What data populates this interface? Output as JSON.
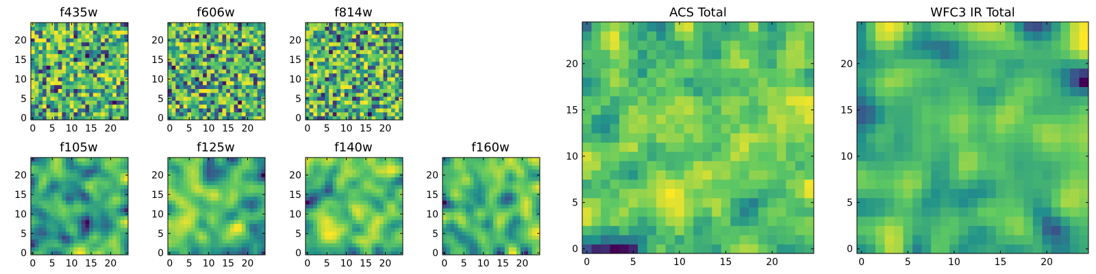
{
  "chart_data": {
    "type": "heatmap",
    "colormap": "viridis",
    "grid_size": 25,
    "colors": [
      "#440154",
      "#3b528b",
      "#21918c",
      "#5ec962",
      "#fde725"
    ],
    "panels": [
      {
        "title": "f435w",
        "xlim": [
          -0.5,
          24.5
        ],
        "ylim": [
          -0.5,
          24.5
        ],
        "xticks": [
          0,
          5,
          10,
          15,
          20
        ],
        "yticks": [
          0,
          5,
          10,
          15,
          20
        ],
        "noise_level": "high",
        "seed": 11
      },
      {
        "title": "f606w",
        "xlim": [
          -0.5,
          24.5
        ],
        "ylim": [
          -0.5,
          24.5
        ],
        "xticks": [
          0,
          5,
          10,
          15,
          20
        ],
        "yticks": [
          0,
          5,
          10,
          15,
          20
        ],
        "noise_level": "high",
        "seed": 23
      },
      {
        "title": "f814w",
        "xlim": [
          -0.5,
          24.5
        ],
        "ylim": [
          -0.5,
          24.5
        ],
        "xticks": [
          0,
          5,
          10,
          15,
          20
        ],
        "yticks": [
          0,
          5,
          10,
          15,
          20
        ],
        "noise_level": "high",
        "seed": 37
      },
      {
        "title": "f105w",
        "xlim": [
          -0.5,
          24.5
        ],
        "ylim": [
          -0.5,
          24.5
        ],
        "xticks": [
          0,
          5,
          10,
          15,
          20
        ],
        "yticks": [
          0,
          5,
          10,
          15,
          20
        ],
        "noise_level": "smooth",
        "seed": 41
      },
      {
        "title": "f125w",
        "xlim": [
          -0.5,
          24.5
        ],
        "ylim": [
          -0.5,
          24.5
        ],
        "xticks": [
          0,
          5,
          10,
          15,
          20
        ],
        "yticks": [
          0,
          5,
          10,
          15,
          20
        ],
        "noise_level": "smooth",
        "seed": 53
      },
      {
        "title": "f140w",
        "xlim": [
          -0.5,
          24.5
        ],
        "ylim": [
          -0.5,
          24.5
        ],
        "xticks": [
          0,
          5,
          10,
          15,
          20
        ],
        "yticks": [
          0,
          5,
          10,
          15,
          20
        ],
        "noise_level": "smooth",
        "seed": 67
      },
      {
        "title": "f160w",
        "xlim": [
          -0.5,
          24.5
        ],
        "ylim": [
          -0.5,
          24.5
        ],
        "xticks": [
          0,
          5,
          10,
          15,
          20
        ],
        "yticks": [
          0,
          5,
          10,
          15,
          20
        ],
        "noise_level": "smooth",
        "seed": 79
      },
      {
        "title": "ACS Total",
        "xlim": [
          -0.5,
          24.5
        ],
        "ylim": [
          -0.5,
          24.5
        ],
        "xticks": [
          0,
          5,
          10,
          15,
          20
        ],
        "yticks": [
          0,
          5,
          10,
          15,
          20
        ],
        "noise_level": "medium",
        "seed": 97
      },
      {
        "title": "WFC3 IR Total",
        "xlim": [
          -0.5,
          24.5
        ],
        "ylim": [
          -0.5,
          24.5
        ],
        "xticks": [
          0,
          5,
          10,
          15,
          20
        ],
        "yticks": [
          0,
          5,
          10,
          15,
          20
        ],
        "noise_level": "smooth",
        "seed": 113
      }
    ]
  }
}
